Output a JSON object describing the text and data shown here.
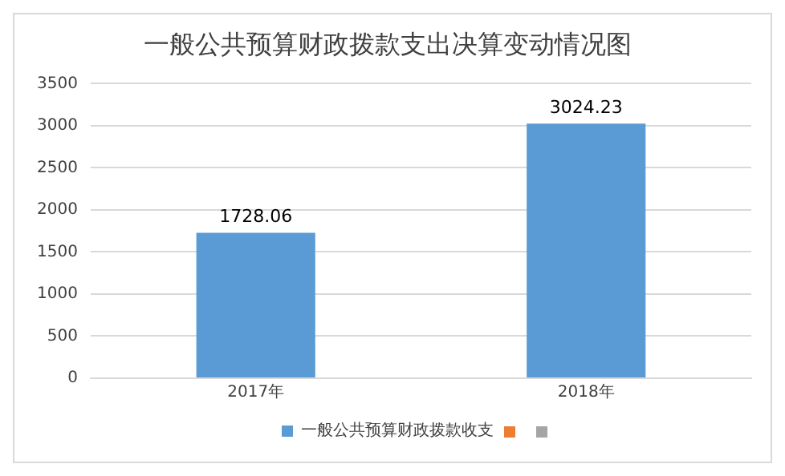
{
  "chart_data": {
    "type": "bar",
    "title": "一般公共预算财政拨款支出决算变动情况图",
    "categories": [
      "2017年",
      "2018年"
    ],
    "series": [
      {
        "name": "一般公共预算财政拨款收支",
        "color": "#5b9bd5",
        "values": [
          1728.06,
          3024.23
        ]
      }
    ],
    "ylim": [
      0,
      3500
    ],
    "yticks": [
      0,
      500,
      1000,
      1500,
      2000,
      2500,
      3000,
      3500
    ],
    "grid": "y",
    "legend": "bottom",
    "data_labels": true
  }
}
